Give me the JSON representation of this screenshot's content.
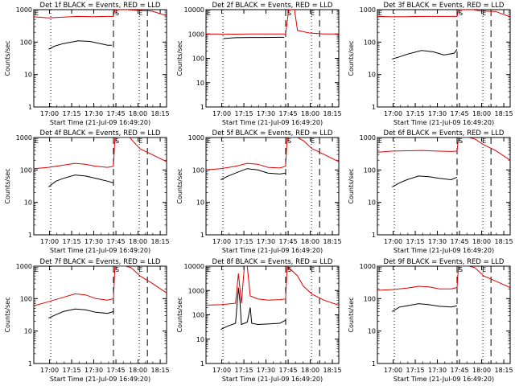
{
  "figure": {
    "background": "#ffffff",
    "events_color": "#000000",
    "lld_color": "#e00000"
  },
  "chart_data": [
    {
      "type": "line",
      "title": "Det 1f BLACK = Events, RED = LLD",
      "ylabel": "Counts/sec",
      "xlabel": "Start Time (21-Jul-09 16:49:20)",
      "x_range_min": [
        0,
        90
      ],
      "y_log_range": [
        1,
        1000
      ],
      "y_ticks": [
        1,
        10,
        100,
        1000
      ],
      "y_tick_labels": [
        "1",
        "10",
        "100",
        "1000"
      ],
      "x_tick_labels": [
        "17:00",
        "17:15",
        "17:30",
        "17:45",
        "18:00",
        "18:15"
      ],
      "markers": {
        "E_left": 0,
        "S": 54,
        "E_right": 75
      },
      "events": [
        [
          10,
          60
        ],
        [
          14,
          75
        ],
        [
          20,
          90
        ],
        [
          30,
          110
        ],
        [
          38,
          105
        ],
        [
          45,
          90
        ],
        [
          50,
          80
        ],
        [
          53,
          80
        ]
      ],
      "lld": [
        [
          0,
          600
        ],
        [
          10,
          560
        ],
        [
          20,
          590
        ],
        [
          30,
          620
        ],
        [
          40,
          610
        ],
        [
          50,
          620
        ],
        [
          54,
          620
        ],
        [
          55,
          1500
        ],
        [
          63,
          1300
        ],
        [
          70,
          950
        ],
        [
          80,
          900
        ],
        [
          90,
          650
        ]
      ]
    },
    {
      "type": "line",
      "title": "Det 2f BLACK = Events, RED = LLD",
      "ylabel": "Counts/sec",
      "xlabel": "Start Time (21-Jul-09 16:49:20)",
      "x_range_min": [
        0,
        90
      ],
      "y_log_range": [
        1,
        10000
      ],
      "y_ticks": [
        1,
        10,
        100,
        1000,
        10000
      ],
      "y_tick_labels": [
        "1",
        "10",
        "100",
        "1000",
        "10000"
      ],
      "x_tick_labels": [
        "17:00",
        "17:15",
        "17:30",
        "17:45",
        "18:00",
        "18:15"
      ],
      "markers": {
        "E_left": 0,
        "S": 54,
        "E_right": 75
      },
      "events": [
        [
          12,
          650
        ],
        [
          20,
          700
        ],
        [
          30,
          720
        ],
        [
          40,
          720
        ],
        [
          50,
          730
        ],
        [
          53,
          730
        ]
      ],
      "lld": [
        [
          0,
          1000
        ],
        [
          10,
          990
        ],
        [
          20,
          980
        ],
        [
          30,
          1000
        ],
        [
          40,
          1000
        ],
        [
          50,
          1000
        ],
        [
          54,
          1000
        ],
        [
          56,
          20000
        ],
        [
          60,
          20000
        ],
        [
          62,
          1400
        ],
        [
          70,
          1100
        ],
        [
          80,
          1000
        ],
        [
          90,
          1000
        ]
      ]
    },
    {
      "type": "line",
      "title": "Det 3f BLACK = Events, RED = LLD",
      "ylabel": "Counts/sec",
      "xlabel": "Start Time (21-Jul-09 16:49:20)",
      "x_range_min": [
        0,
        90
      ],
      "y_log_range": [
        1,
        1000
      ],
      "y_ticks": [
        1,
        10,
        100,
        1000
      ],
      "y_tick_labels": [
        "1",
        "10",
        "100",
        "1000"
      ],
      "x_tick_labels": [
        "17:00",
        "17:15",
        "17:30",
        "17:45",
        "18:00",
        "18:15"
      ],
      "markers": {
        "E_left": 0,
        "S": 54,
        "E_right": 75
      },
      "events": [
        [
          10,
          30
        ],
        [
          15,
          35
        ],
        [
          20,
          42
        ],
        [
          30,
          55
        ],
        [
          38,
          50
        ],
        [
          45,
          40
        ],
        [
          52,
          45
        ],
        [
          54,
          60
        ]
      ],
      "lld": [
        [
          0,
          620
        ],
        [
          10,
          600
        ],
        [
          20,
          610
        ],
        [
          30,
          620
        ],
        [
          40,
          620
        ],
        [
          50,
          620
        ],
        [
          54,
          620
        ],
        [
          55,
          2000
        ],
        [
          65,
          1500
        ],
        [
          70,
          900
        ],
        [
          80,
          880
        ],
        [
          90,
          600
        ]
      ]
    },
    {
      "type": "line",
      "title": "Det 4f BLACK = Events, RED = LLD",
      "ylabel": "Counts/sec",
      "xlabel": "Start Time (21-Jul-09 16:49:20)",
      "x_range_min": [
        0,
        90
      ],
      "y_log_range": [
        1,
        1000
      ],
      "y_ticks": [
        1,
        10,
        100,
        1000
      ],
      "y_tick_labels": [
        "1",
        "10",
        "100",
        "1000"
      ],
      "x_tick_labels": [
        "17:00",
        "17:15",
        "17:30",
        "17:45",
        "18:00",
        "18:15"
      ],
      "markers": {
        "E_left": 0,
        "S": 54,
        "E_right": 75
      },
      "events": [
        [
          10,
          30
        ],
        [
          15,
          45
        ],
        [
          20,
          55
        ],
        [
          28,
          70
        ],
        [
          35,
          65
        ],
        [
          42,
          55
        ],
        [
          50,
          45
        ],
        [
          54,
          40
        ]
      ],
      "lld": [
        [
          0,
          110
        ],
        [
          10,
          120
        ],
        [
          20,
          140
        ],
        [
          28,
          160
        ],
        [
          35,
          150
        ],
        [
          42,
          130
        ],
        [
          50,
          120
        ],
        [
          54,
          130
        ],
        [
          55,
          2500
        ],
        [
          65,
          1500
        ],
        [
          68,
          700
        ],
        [
          72,
          450
        ],
        [
          80,
          300
        ],
        [
          90,
          180
        ]
      ]
    },
    {
      "type": "line",
      "title": "Det 5f BLACK = Events, RED = LLD",
      "ylabel": "Counts/sec",
      "xlabel": "Start Time (21-Jul-09 16:49:20)",
      "x_range_min": [
        0,
        90
      ],
      "y_log_range": [
        1,
        1000
      ],
      "y_ticks": [
        1,
        10,
        100,
        1000
      ],
      "y_tick_labels": [
        "1",
        "10",
        "100",
        "1000"
      ],
      "x_tick_labels": [
        "17:00",
        "17:15",
        "17:30",
        "17:45",
        "18:00",
        "18:15"
      ],
      "markers": {
        "E_left": 0,
        "S": 54,
        "E_right": 75
      },
      "events": [
        [
          10,
          50
        ],
        [
          15,
          65
        ],
        [
          20,
          80
        ],
        [
          28,
          110
        ],
        [
          35,
          100
        ],
        [
          42,
          80
        ],
        [
          50,
          75
        ],
        [
          54,
          80
        ]
      ],
      "lld": [
        [
          0,
          100
        ],
        [
          10,
          110
        ],
        [
          20,
          130
        ],
        [
          28,
          160
        ],
        [
          35,
          150
        ],
        [
          42,
          120
        ],
        [
          50,
          115
        ],
        [
          54,
          130
        ],
        [
          55,
          3000
        ],
        [
          62,
          1500
        ],
        [
          66,
          800
        ],
        [
          72,
          450
        ],
        [
          80,
          300
        ],
        [
          90,
          180
        ]
      ]
    },
    {
      "type": "line",
      "title": "Det 6f BLACK = Events, RED = LLD",
      "ylabel": "Counts/sec",
      "xlabel": "Start Time (21-Jul-09 16:49:20)",
      "x_range_min": [
        0,
        90
      ],
      "y_log_range": [
        1,
        1000
      ],
      "y_ticks": [
        1,
        10,
        100,
        1000
      ],
      "y_tick_labels": [
        "1",
        "10",
        "100",
        "1000"
      ],
      "x_tick_labels": [
        "17:00",
        "17:15",
        "17:30",
        "17:45",
        "18:00",
        "18:15"
      ],
      "markers": {
        "E_left": 0,
        "S": 54,
        "E_right": 75
      },
      "events": [
        [
          10,
          30
        ],
        [
          15,
          40
        ],
        [
          20,
          50
        ],
        [
          28,
          65
        ],
        [
          35,
          62
        ],
        [
          42,
          55
        ],
        [
          50,
          50
        ],
        [
          54,
          60
        ]
      ],
      "lld": [
        [
          0,
          350
        ],
        [
          10,
          380
        ],
        [
          20,
          390
        ],
        [
          30,
          400
        ],
        [
          40,
          380
        ],
        [
          50,
          370
        ],
        [
          54,
          380
        ],
        [
          55,
          3000
        ],
        [
          62,
          2000
        ],
        [
          66,
          900
        ],
        [
          72,
          600
        ],
        [
          80,
          400
        ],
        [
          90,
          200
        ]
      ]
    },
    {
      "type": "line",
      "title": "Det 7f BLACK = Events, RED = LLD",
      "ylabel": "Counts/sec",
      "xlabel": "Start Time (21-Jul-09 16:49:20)",
      "x_range_min": [
        0,
        90
      ],
      "y_log_range": [
        1,
        1000
      ],
      "y_ticks": [
        1,
        10,
        100,
        1000
      ],
      "y_tick_labels": [
        "1",
        "10",
        "100",
        "1000"
      ],
      "x_tick_labels": [
        "17:00",
        "17:15",
        "17:30",
        "17:45",
        "18:00",
        "18:15"
      ],
      "markers": {
        "E_left": 0,
        "S": 54,
        "E_right": 75
      },
      "events": [
        [
          10,
          25
        ],
        [
          15,
          32
        ],
        [
          20,
          40
        ],
        [
          28,
          48
        ],
        [
          35,
          45
        ],
        [
          42,
          38
        ],
        [
          50,
          35
        ],
        [
          54,
          40
        ]
      ],
      "lld": [
        [
          0,
          60
        ],
        [
          10,
          80
        ],
        [
          20,
          110
        ],
        [
          28,
          140
        ],
        [
          35,
          130
        ],
        [
          42,
          100
        ],
        [
          50,
          90
        ],
        [
          54,
          100
        ],
        [
          55,
          4000
        ],
        [
          62,
          2000
        ],
        [
          66,
          900
        ],
        [
          72,
          500
        ],
        [
          80,
          300
        ],
        [
          90,
          150
        ]
      ]
    },
    {
      "type": "line",
      "title": "Det 8f BLACK = Events, RED = LLD",
      "ylabel": "Counts/sec",
      "xlabel": "Start Time (21-Jul-09 16:49:20)",
      "x_range_min": [
        0,
        90
      ],
      "y_log_range": [
        1,
        10000
      ],
      "y_ticks": [
        1,
        10,
        100,
        1000,
        10000
      ],
      "y_tick_labels": [
        "1",
        "10",
        "100",
        "1000",
        "10000"
      ],
      "x_tick_labels": [
        "17:00",
        "17:15",
        "17:30",
        "17:45",
        "18:00",
        "18:15"
      ],
      "markers": {
        "E_left": 0,
        "S": 54,
        "E_right": 75
      },
      "events": [
        [
          10,
          25
        ],
        [
          15,
          35
        ],
        [
          20,
          45
        ],
        [
          22,
          1300
        ],
        [
          23,
          350
        ],
        [
          24,
          40
        ],
        [
          28,
          50
        ],
        [
          30,
          200
        ],
        [
          31,
          45
        ],
        [
          35,
          40
        ],
        [
          42,
          42
        ],
        [
          50,
          45
        ],
        [
          54,
          60
        ]
      ],
      "lld": [
        [
          0,
          250
        ],
        [
          10,
          260
        ],
        [
          20,
          300
        ],
        [
          22,
          5000
        ],
        [
          24,
          300
        ],
        [
          26,
          12000
        ],
        [
          28,
          12000
        ],
        [
          30,
          600
        ],
        [
          35,
          450
        ],
        [
          42,
          400
        ],
        [
          50,
          420
        ],
        [
          54,
          450
        ],
        [
          55,
          20000
        ],
        [
          62,
          4000
        ],
        [
          66,
          1500
        ],
        [
          72,
          700
        ],
        [
          80,
          400
        ],
        [
          90,
          250
        ]
      ]
    },
    {
      "type": "line",
      "title": "Det 9f BLACK = Events, RED = LLD",
      "ylabel": "Counts/sec",
      "xlabel": "Start Time (21-Jul-09 16:49:20)",
      "x_range_min": [
        0,
        90
      ],
      "y_log_range": [
        1,
        1000
      ],
      "y_ticks": [
        1,
        10,
        100,
        1000
      ],
      "y_tick_labels": [
        "1",
        "10",
        "100",
        "1000"
      ],
      "x_tick_labels": [
        "17:00",
        "17:15",
        "17:30",
        "17:45",
        "18:00",
        "18:15"
      ],
      "markers": {
        "E_left": 0,
        "S": 54,
        "E_right": 75
      },
      "events": [
        [
          10,
          40
        ],
        [
          15,
          55
        ],
        [
          20,
          60
        ],
        [
          28,
          70
        ],
        [
          35,
          65
        ],
        [
          42,
          58
        ],
        [
          50,
          55
        ],
        [
          54,
          60
        ]
      ],
      "lld": [
        [
          0,
          180
        ],
        [
          10,
          190
        ],
        [
          20,
          210
        ],
        [
          28,
          240
        ],
        [
          35,
          230
        ],
        [
          42,
          200
        ],
        [
          50,
          200
        ],
        [
          54,
          220
        ],
        [
          55,
          2500
        ],
        [
          62,
          1500
        ],
        [
          66,
          900
        ],
        [
          72,
          500
        ],
        [
          80,
          350
        ],
        [
          90,
          220
        ]
      ]
    }
  ]
}
